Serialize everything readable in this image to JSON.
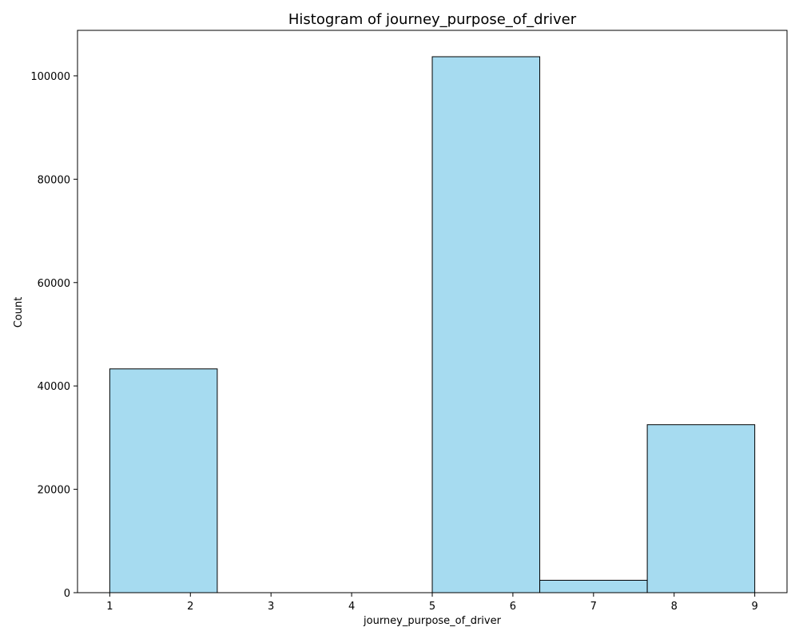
{
  "chart_data": {
    "type": "bar",
    "title": "Histogram of journey_purpose_of_driver",
    "xlabel": "journey_purpose_of_driver",
    "ylabel": "Count",
    "bin_edges": [
      1,
      2.3333,
      3.6667,
      5,
      6.3333,
      7.6667,
      9
    ],
    "values": [
      43300,
      0,
      0,
      103700,
      2400,
      32500
    ],
    "xlim": [
      0.6,
      9.4
    ],
    "ylim": [
      0,
      108800
    ],
    "xticks": [
      "1",
      "2",
      "3",
      "4",
      "5",
      "6",
      "7",
      "8",
      "9"
    ],
    "xtick_values": [
      1,
      2,
      3,
      4,
      5,
      6,
      7,
      8,
      9
    ],
    "yticks": [
      "0",
      "20000",
      "40000",
      "60000",
      "80000",
      "100000"
    ],
    "ytick_values": [
      0,
      20000,
      40000,
      60000,
      80000,
      100000
    ],
    "bar_color": "#a6dbf0",
    "edge_color": "#000000",
    "grid": false,
    "legend": "none"
  }
}
